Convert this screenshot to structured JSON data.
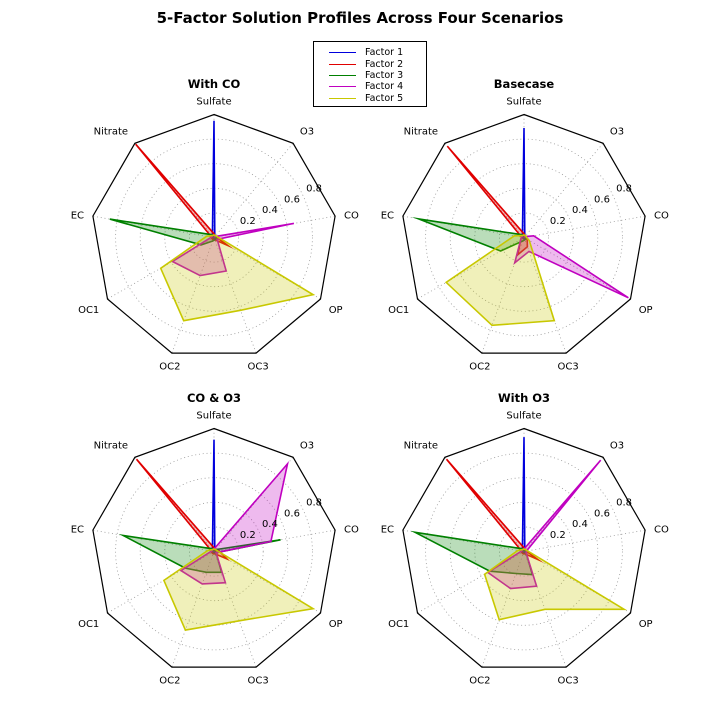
{
  "title": "5-Factor Solution Profiles Across Four Scenarios",
  "legend": {
    "items": [
      {
        "label": "Factor 1",
        "color": "#0000dd"
      },
      {
        "label": "Factor 2",
        "color": "#e00000"
      },
      {
        "label": "Factor 3",
        "color": "#008000"
      },
      {
        "label": "Factor 4",
        "color": "#c000c0"
      },
      {
        "label": "Factor 5",
        "color": "#c8c800"
      }
    ]
  },
  "axes": {
    "categories": [
      "Sulfate",
      "O3",
      "CO",
      "OP",
      "OC3",
      "OC2",
      "OC1",
      "EC",
      "Nitrate"
    ],
    "tick_labels": [
      "0.2",
      "0.4",
      "0.6",
      "0.8"
    ],
    "tick_values": [
      0.2,
      0.4,
      0.6,
      0.8
    ],
    "rmax": 1.0,
    "grid": "dotted-circles-with-spokes",
    "frame": "polygon"
  },
  "chart_data": [
    {
      "type": "radar",
      "title": "With CO",
      "position": "top-left",
      "categories": [
        "Sulfate",
        "O3",
        "CO",
        "OP",
        "OC3",
        "OC2",
        "OC1",
        "EC",
        "Nitrate"
      ],
      "series": [
        {
          "name": "Factor 1",
          "color": "#0000dd",
          "values": [
            0.95,
            0.01,
            0.01,
            0.01,
            0.01,
            0.01,
            0.01,
            0.01,
            0.02
          ]
        },
        {
          "name": "Factor 2",
          "color": "#e00000",
          "values": [
            0.03,
            0.01,
            0.02,
            0.13,
            0.02,
            0.02,
            0.02,
            0.02,
            0.99
          ]
        },
        {
          "name": "Factor 3",
          "color": "#008000",
          "values": [
            0.01,
            0.01,
            0.02,
            0.02,
            0.02,
            0.03,
            0.12,
            0.86,
            0.03
          ]
        },
        {
          "name": "Factor 4",
          "color": "#c000c0",
          "values": [
            0.02,
            0.01,
            0.66,
            0.03,
            0.29,
            0.33,
            0.39,
            0.02,
            0.02
          ]
        },
        {
          "name": "Factor 5",
          "color": "#c8c800",
          "values": [
            0.02,
            0.02,
            0.03,
            0.93,
            0.63,
            0.72,
            0.5,
            0.06,
            0.02
          ]
        }
      ]
    },
    {
      "type": "radar",
      "title": "Basecase",
      "position": "top-right",
      "categories": [
        "Sulfate",
        "O3",
        "CO",
        "OP",
        "OC3",
        "OC2",
        "OC1",
        "EC",
        "Nitrate"
      ],
      "series": [
        {
          "name": "Factor 1",
          "color": "#0000dd",
          "values": [
            0.89,
            0.01,
            0.01,
            0.01,
            0.01,
            0.01,
            0.01,
            0.01,
            0.02
          ]
        },
        {
          "name": "Factor 2",
          "color": "#e00000",
          "values": [
            0.03,
            0.01,
            0.01,
            0.03,
            0.08,
            0.15,
            0.03,
            0.02,
            0.97
          ]
        },
        {
          "name": "Factor 3",
          "color": "#008000",
          "values": [
            0.01,
            0.01,
            0.02,
            0.02,
            0.02,
            0.03,
            0.22,
            0.87,
            0.03
          ]
        },
        {
          "name": "Factor 4",
          "color": "#c000c0",
          "values": [
            0.02,
            0.01,
            0.08,
            0.98,
            0.12,
            0.22,
            0.03,
            0.02,
            0.02
          ]
        },
        {
          "name": "Factor 5",
          "color": "#c8c800",
          "values": [
            0.02,
            0.02,
            0.02,
            0.05,
            0.72,
            0.76,
            0.73,
            0.08,
            0.02
          ]
        }
      ]
    },
    {
      "type": "radar",
      "title": "CO & O3",
      "position": "bottom-left",
      "categories": [
        "Sulfate",
        "O3",
        "CO",
        "OP",
        "OC3",
        "OC2",
        "OC1",
        "EC",
        "Nitrate"
      ],
      "series": [
        {
          "name": "Factor 1",
          "color": "#0000dd",
          "values": [
            0.91,
            0.01,
            0.01,
            0.01,
            0.01,
            0.01,
            0.01,
            0.01,
            0.02
          ]
        },
        {
          "name": "Factor 2",
          "color": "#e00000",
          "values": [
            0.03,
            0.01,
            0.04,
            0.12,
            0.02,
            0.02,
            0.02,
            0.02,
            0.98
          ]
        },
        {
          "name": "Factor 3",
          "color": "#008000",
          "values": [
            0.01,
            0.02,
            0.55,
            0.02,
            0.18,
            0.18,
            0.27,
            0.75,
            0.03
          ]
        },
        {
          "name": "Factor 4",
          "color": "#c000c0",
          "values": [
            0.02,
            0.93,
            0.47,
            0.02,
            0.27,
            0.28,
            0.31,
            0.02,
            0.02
          ]
        },
        {
          "name": "Factor 5",
          "color": "#c8c800",
          "values": [
            0.02,
            0.02,
            0.03,
            0.93,
            0.6,
            0.68,
            0.47,
            0.05,
            0.02
          ]
        }
      ]
    },
    {
      "type": "radar",
      "title": "With O3",
      "position": "bottom-right",
      "categories": [
        "Sulfate",
        "O3",
        "CO",
        "OP",
        "OC3",
        "OC2",
        "OC1",
        "EC",
        "Nitrate"
      ],
      "series": [
        {
          "name": "Factor 1",
          "color": "#0000dd",
          "values": [
            0.93,
            0.01,
            0.01,
            0.01,
            0.01,
            0.01,
            0.01,
            0.01,
            0.02
          ]
        },
        {
          "name": "Factor 2",
          "color": "#e00000",
          "values": [
            0.03,
            0.01,
            0.02,
            0.13,
            0.02,
            0.02,
            0.02,
            0.02,
            0.98
          ]
        },
        {
          "name": "Factor 3",
          "color": "#008000",
          "values": [
            0.01,
            0.01,
            0.02,
            0.02,
            0.2,
            0.19,
            0.32,
            0.9,
            0.03
          ]
        },
        {
          "name": "Factor 4",
          "color": "#c000c0",
          "values": [
            0.02,
            0.97,
            0.02,
            0.02,
            0.3,
            0.32,
            0.34,
            0.02,
            0.02
          ]
        },
        {
          "name": "Factor 5",
          "color": "#c8c800",
          "values": [
            0.02,
            0.02,
            0.03,
            0.94,
            0.5,
            0.59,
            0.37,
            0.05,
            0.02
          ]
        }
      ]
    }
  ]
}
